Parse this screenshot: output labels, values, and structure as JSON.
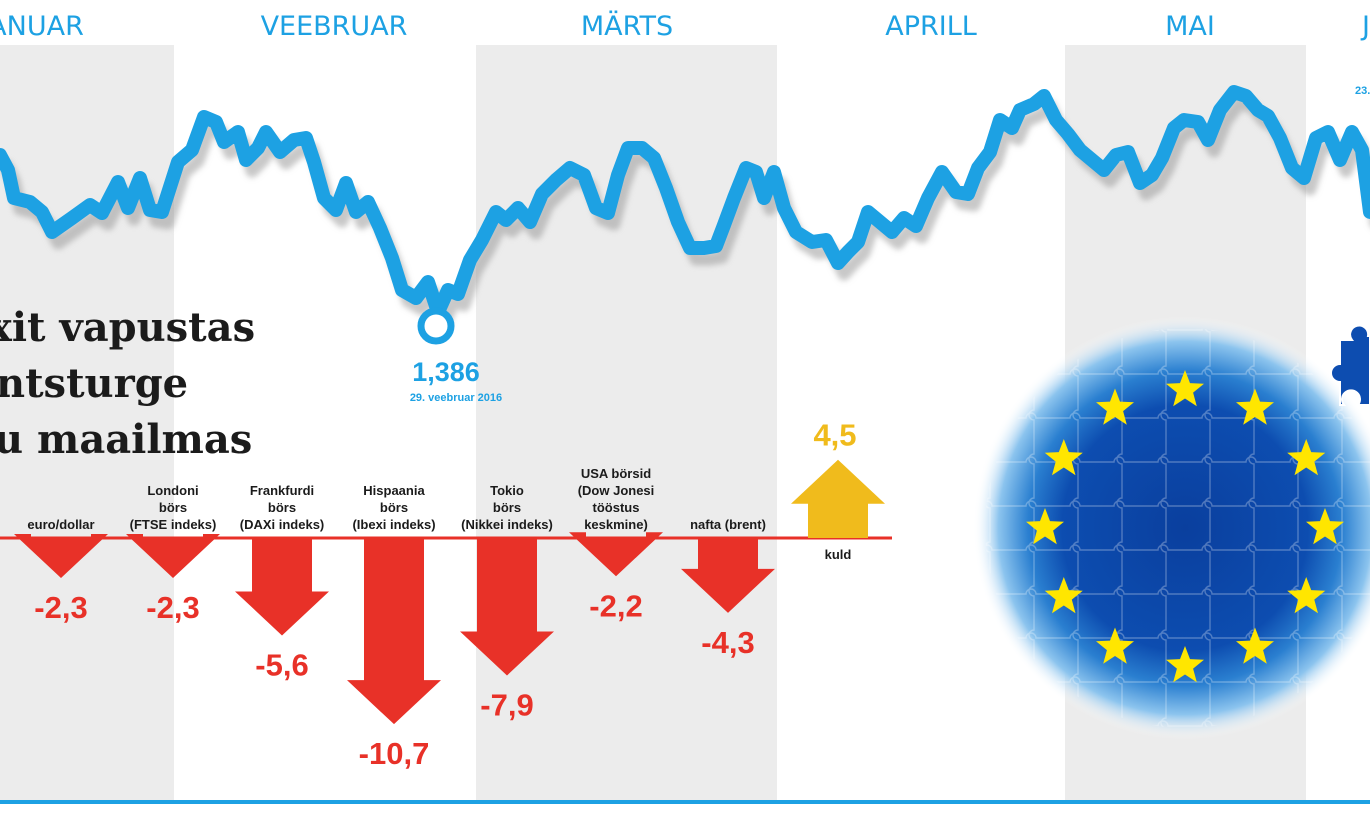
{
  "colors": {
    "line": "#1da1e3",
    "negative": "#e83128",
    "positive": "#f0bb1c",
    "shade": "#ececec",
    "eu_blue": "#0a3f9e",
    "star": "#ffe600"
  },
  "chart_data": [
    {
      "type": "line",
      "title": "",
      "months": [
        "ANUAR",
        "VEEBRUAR",
        "MÄRTS",
        "APRILL",
        "MAI",
        "J"
      ],
      "low_point": {
        "value": "1,386",
        "date": "29. veebruar 2016"
      },
      "cut_label": "23."
    },
    {
      "type": "bar",
      "title_lines": [
        "xit vapustas",
        "ntsturge",
        "u maailmas"
      ],
      "categories": [
        [
          "euro/dollar"
        ],
        [
          "Londoni",
          "börs",
          "(FTSE indeks)"
        ],
        [
          "Frankfurdi",
          "börs",
          "(DAXi indeks)"
        ],
        [
          "Hispaania",
          "börs",
          "(Ibexi indeks)"
        ],
        [
          "Tokio",
          "börs",
          "(Nikkei indeks)"
        ],
        [
          "USA börsid",
          "(Dow Jonesi",
          "tööstus",
          "keskmine)"
        ],
        [
          "nafta (brent)"
        ],
        [
          "kuld"
        ]
      ],
      "values": [
        -2.3,
        -2.3,
        -5.6,
        -10.7,
        -7.9,
        -2.2,
        -4.3,
        4.5
      ],
      "value_labels": [
        "-2,3",
        "-2,3",
        "-5,6",
        "-10,7",
        "-7,9",
        "-2,2",
        "-4,3",
        "4,5"
      ]
    }
  ]
}
